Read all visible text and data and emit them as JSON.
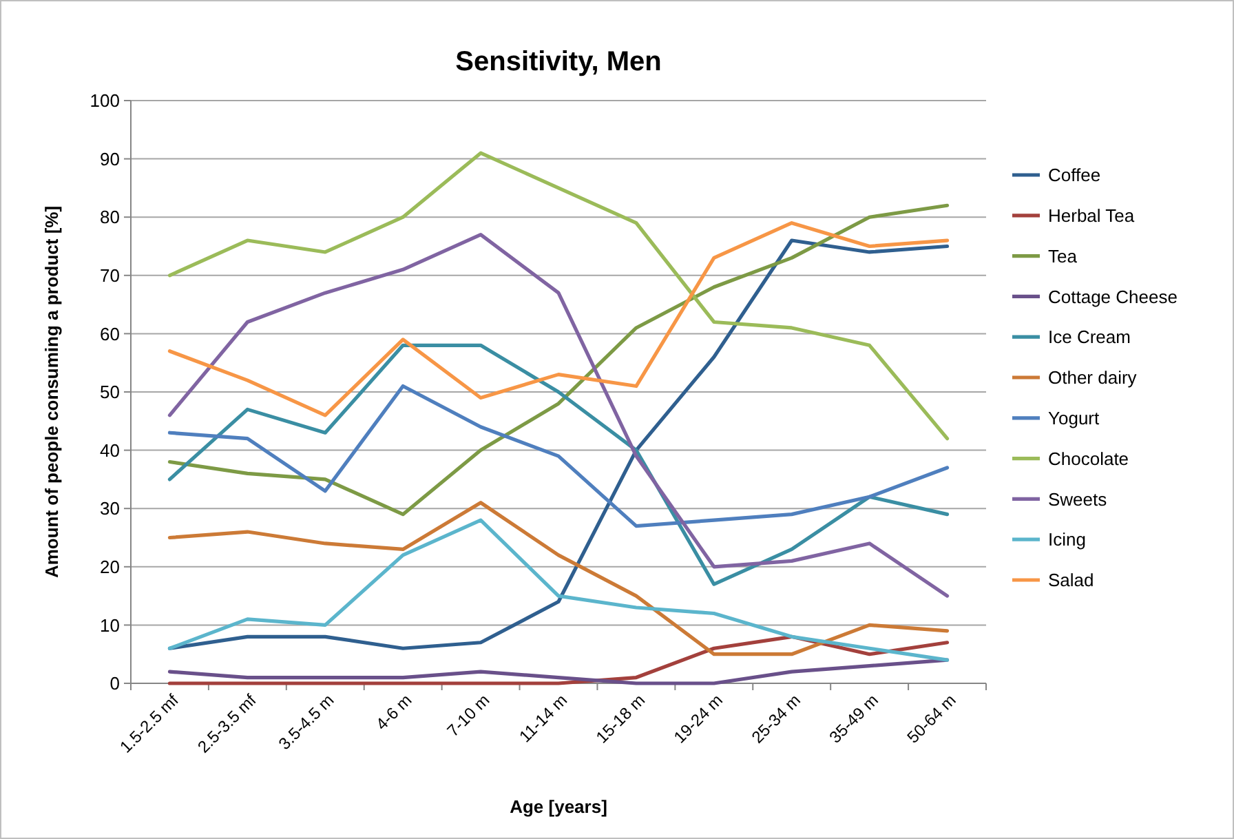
{
  "chart_data": {
    "type": "line",
    "title": "Sensitivity, Men",
    "xlabel": "Age [years]",
    "ylabel": "Amount of people consuming a product [%]",
    "categories": [
      "1.5-2.5 mf",
      "2.5-3.5 mf",
      "3.5-4.5 m",
      "4-6 m",
      "7-10 m",
      "11-14 m",
      "15-18 m",
      "19-24 m",
      "25-34 m",
      "35-49 m",
      "50-64 m"
    ],
    "ylim": [
      0,
      100
    ],
    "yticks": [
      0,
      10,
      20,
      30,
      40,
      50,
      60,
      70,
      80,
      90,
      100
    ],
    "grid": "y",
    "legend": "right",
    "marker": "none",
    "line_style": "solid",
    "series": [
      {
        "name": "Coffee",
        "color": "#2f5f8f",
        "values": [
          6,
          8,
          8,
          6,
          7,
          14,
          40,
          56,
          76,
          74,
          75
        ]
      },
      {
        "name": "Herbal Tea",
        "color": "#a3403c",
        "values": [
          0,
          0,
          0,
          0,
          0,
          0,
          1,
          6,
          8,
          5,
          7
        ]
      },
      {
        "name": "Tea",
        "color": "#7d9a45",
        "values": [
          38,
          36,
          35,
          29,
          40,
          48,
          61,
          68,
          73,
          80,
          82
        ]
      },
      {
        "name": "Cottage Cheese",
        "color": "#69508a",
        "values": [
          2,
          1,
          1,
          1,
          2,
          1,
          0,
          0,
          2,
          3,
          4
        ]
      },
      {
        "name": "Ice Cream",
        "color": "#3a8ea3",
        "values": [
          35,
          47,
          43,
          58,
          58,
          50,
          40,
          17,
          23,
          32,
          29
        ]
      },
      {
        "name": "Other dairy",
        "color": "#cc7a36",
        "values": [
          25,
          26,
          24,
          23,
          31,
          22,
          15,
          5,
          5,
          10,
          9
        ]
      },
      {
        "name": "Yogurt",
        "color": "#4f7fbe",
        "values": [
          43,
          42,
          33,
          51,
          44,
          39,
          27,
          28,
          29,
          32,
          37
        ]
      },
      {
        "name": "Chocolate",
        "color": "#9bbb59",
        "values": [
          70,
          76,
          74,
          80,
          91,
          85,
          79,
          62,
          61,
          58,
          42
        ]
      },
      {
        "name": "Sweets",
        "color": "#8064a2",
        "values": [
          46,
          62,
          67,
          71,
          77,
          67,
          39,
          20,
          21,
          24,
          15
        ]
      },
      {
        "name": "Icing",
        "color": "#5bb5cc",
        "values": [
          6,
          11,
          10,
          22,
          28,
          15,
          13,
          12,
          8,
          6,
          4
        ]
      },
      {
        "name": "Salad",
        "color": "#f79646",
        "values": [
          57,
          52,
          46,
          59,
          49,
          53,
          51,
          73,
          79,
          75,
          76
        ]
      }
    ]
  }
}
